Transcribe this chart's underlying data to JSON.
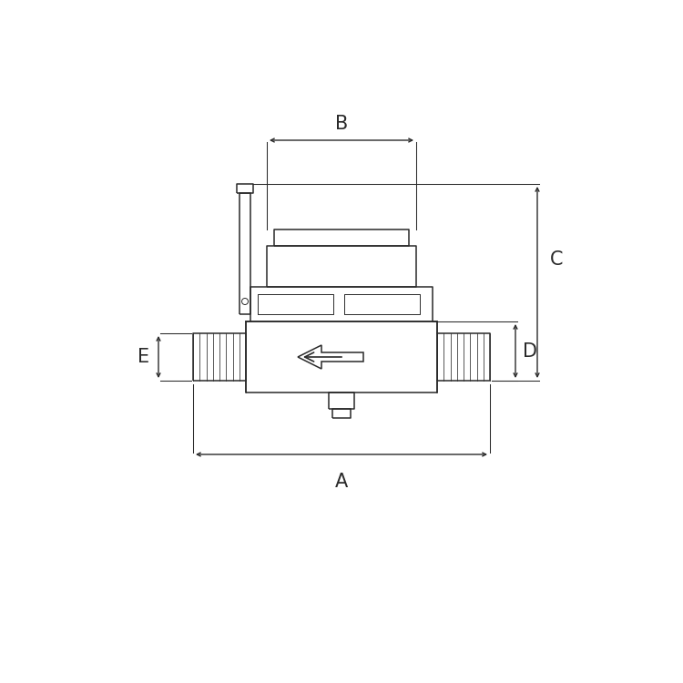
{
  "bg_color": "#ffffff",
  "line_color": "#2a2a2a",
  "dim_color": "#2a2a2a",
  "lw": 1.1,
  "thin_lw": 0.7,
  "labels": {
    "A": "A",
    "B": "B",
    "C": "C",
    "D": "D",
    "E": "E"
  },
  "label_fontsize": 15,
  "figsize": [
    7.5,
    7.5
  ],
  "dpi": 100
}
